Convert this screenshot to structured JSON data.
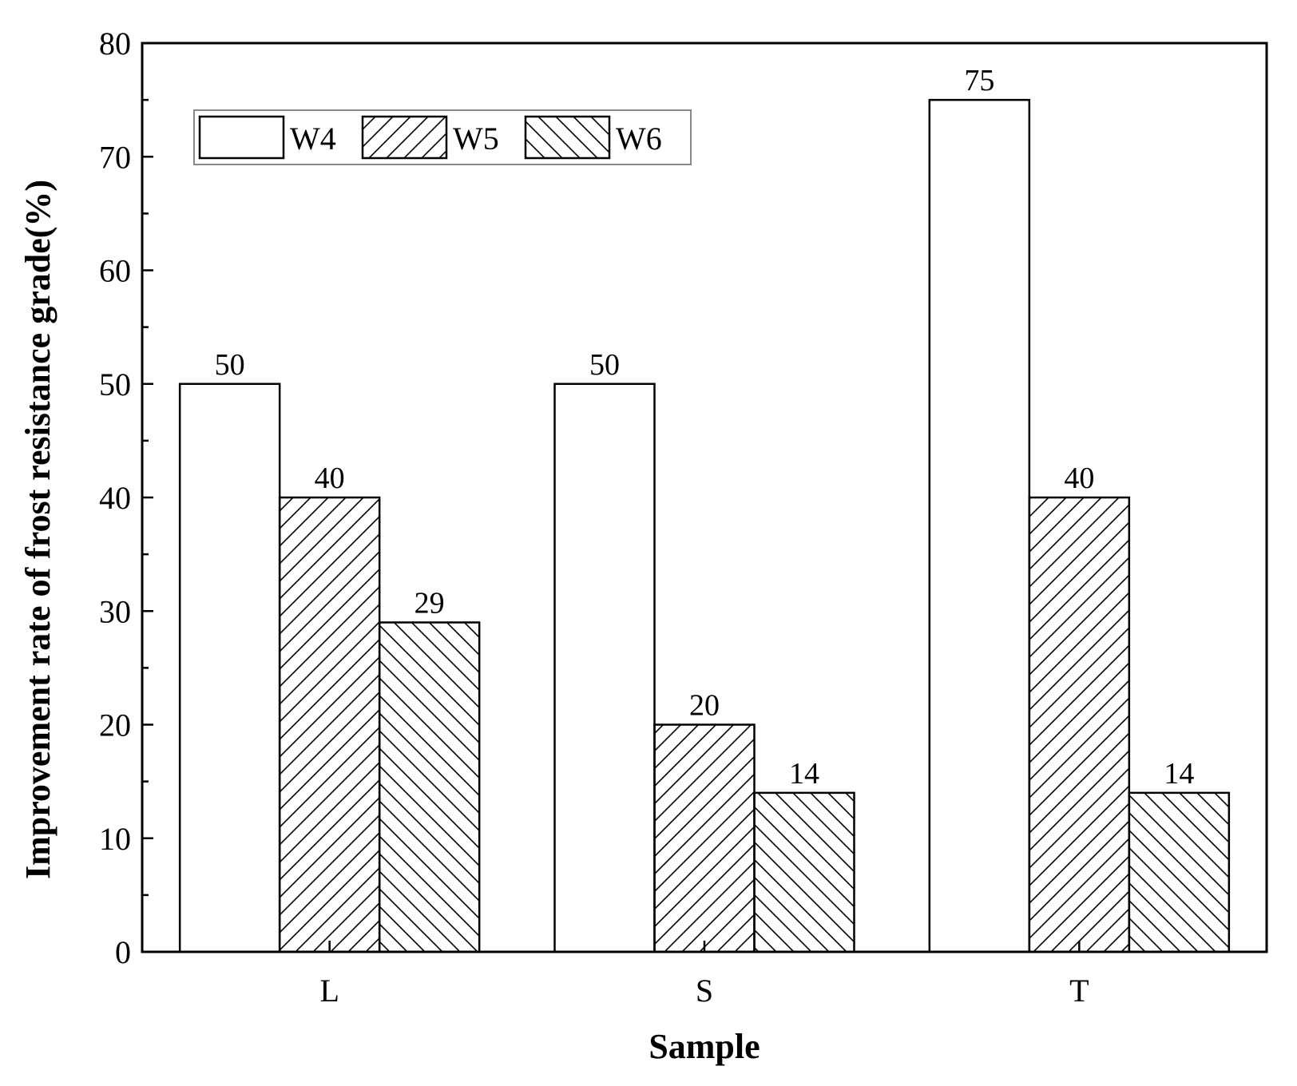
{
  "chart_data": {
    "type": "bar",
    "categories": [
      "L",
      "S",
      "T"
    ],
    "series": [
      {
        "name": "W4",
        "values": [
          50,
          50,
          75
        ],
        "pattern": "none"
      },
      {
        "name": "W5",
        "values": [
          40,
          20,
          40
        ],
        "pattern": "forward-diagonal"
      },
      {
        "name": "W6",
        "values": [
          29,
          14,
          14
        ],
        "pattern": "backward-diagonal"
      }
    ],
    "data_labels": [
      [
        "50",
        "50",
        "75"
      ],
      [
        "40",
        "20",
        "40"
      ],
      [
        "29",
        "14",
        "14"
      ]
    ],
    "xlabel": "Sample",
    "ylabel": "Improvement rate of frost resistance grade(%)",
    "ylim": [
      0,
      80
    ],
    "yticks": [
      0,
      10,
      20,
      30,
      40,
      50,
      60,
      70,
      80
    ],
    "grid": false,
    "legend_position": "top-left",
    "colors": {
      "bar_stroke": "#000000",
      "bar_fill": "#ffffff",
      "background": "#ffffff"
    }
  }
}
